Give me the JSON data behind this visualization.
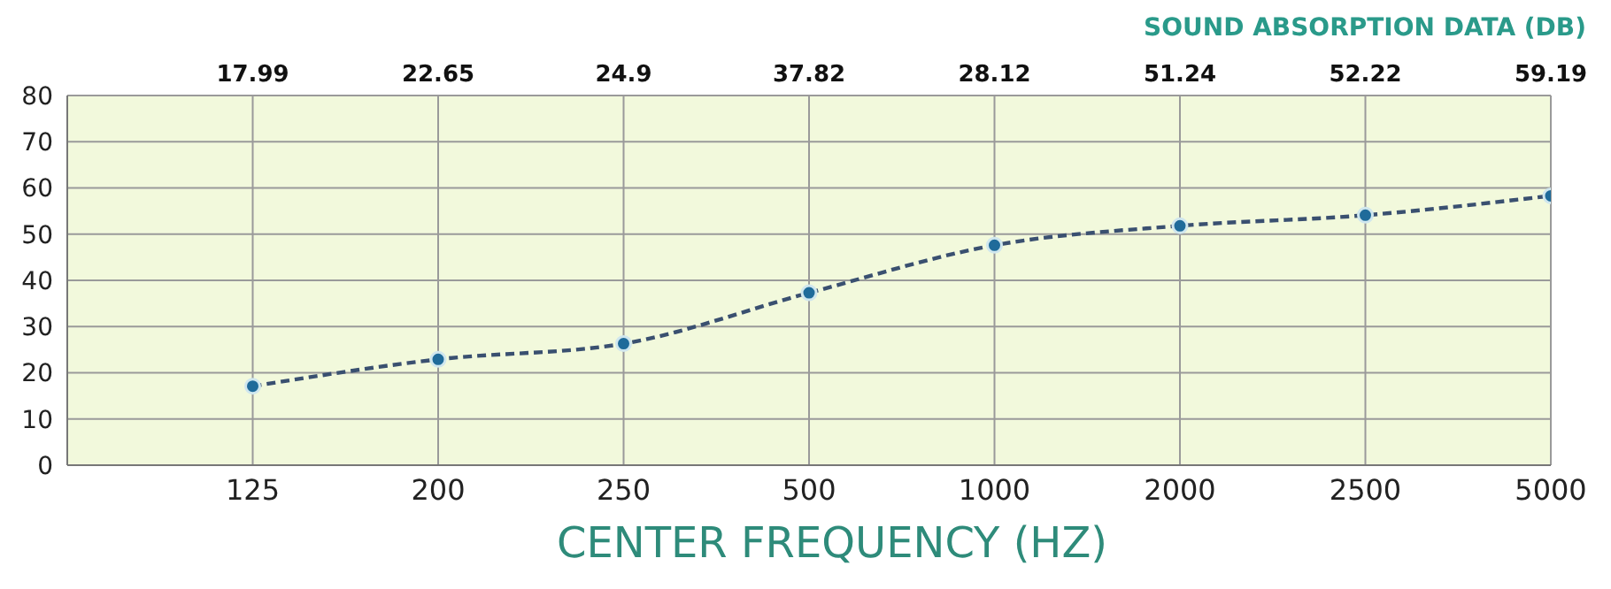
{
  "chart_data": {
    "type": "line",
    "title": "SOUND ABSORPTION DATA (DB)",
    "xlabel": "CENTER FREQUENCY (HZ)",
    "categories": [
      "125",
      "200",
      "250",
      "500",
      "1000",
      "2000",
      "2500",
      "5000"
    ],
    "series": [
      {
        "color": "#3a5070",
        "values": [
          17.1,
          22.9,
          26.3,
          37.3,
          47.6,
          51.8,
          54.1,
          58.3
        ]
      }
    ],
    "ylim": [
      0,
      80
    ],
    "yticks": [
      0,
      10,
      20,
      30,
      40,
      50,
      60,
      70,
      80
    ],
    "grid": true,
    "legend": false,
    "marker": "circle",
    "line_style": "dashed",
    "annotations": [
      "17.99",
      "22.65",
      "24.9",
      "37.82",
      "28.12",
      "51.24",
      "52.22",
      "59.19"
    ]
  }
}
